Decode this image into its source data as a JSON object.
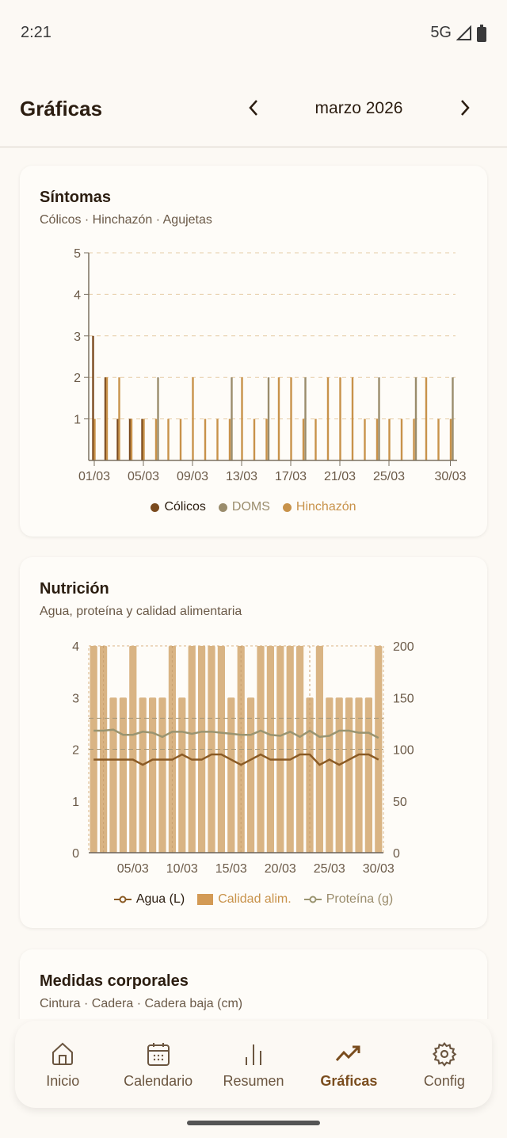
{
  "status": {
    "time": "2:21",
    "network": "5G"
  },
  "header": {
    "title": "Gráficas",
    "month": "marzo 2026",
    "prev_icon": "chevron-left-icon",
    "next_icon": "chevron-right-icon"
  },
  "colors": {
    "colicos": "#7a4a1e",
    "doms": "#9a8c6c",
    "hinchazon": "#c8924a",
    "agua": "#8a5a24",
    "calidad": "#d9b484",
    "proteina": "#9a9470",
    "accent": "#7a4d1e"
  },
  "symptoms": {
    "title": "Síntomas",
    "subtitle": "Cólicos · Hinchazón · Agujetas",
    "chart_data": {
      "type": "bar",
      "ylim": [
        0,
        5
      ],
      "yticks": [
        "1",
        "2",
        "3",
        "4",
        "5"
      ],
      "xticks": [
        {
          "day": 1,
          "label": "01/03"
        },
        {
          "day": 5,
          "label": "05/03"
        },
        {
          "day": 9,
          "label": "09/03"
        },
        {
          "day": 13,
          "label": "13/03"
        },
        {
          "day": 17,
          "label": "17/03"
        },
        {
          "day": 21,
          "label": "21/03"
        },
        {
          "day": 25,
          "label": "25/03"
        },
        {
          "day": 30,
          "label": "30/03"
        }
      ],
      "days": [
        1,
        2,
        3,
        4,
        5,
        6,
        7,
        8,
        9,
        10,
        11,
        12,
        13,
        14,
        15,
        16,
        17,
        18,
        19,
        20,
        21,
        22,
        23,
        24,
        25,
        26,
        27,
        28,
        29,
        30
      ],
      "series": [
        {
          "name": "Cólicos",
          "values": [
            3,
            2,
            1,
            1,
            1,
            0,
            0,
            0,
            0,
            0,
            0,
            0,
            0,
            0,
            0,
            0,
            0,
            0,
            0,
            0,
            0,
            0,
            0,
            0,
            0,
            0,
            0,
            0,
            0,
            0
          ]
        },
        {
          "name": "DOMS",
          "values": [
            0,
            0,
            0,
            0,
            0,
            2,
            0,
            0,
            0,
            0,
            0,
            2,
            0,
            0,
            2,
            0,
            0,
            2,
            0,
            0,
            0,
            0,
            0,
            2,
            0,
            0,
            2,
            0,
            0,
            2
          ]
        },
        {
          "name": "Hinchazón",
          "values": [
            1,
            2,
            2,
            1,
            1,
            1,
            1,
            1,
            2,
            1,
            1,
            1,
            2,
            1,
            1,
            2,
            2,
            1,
            1,
            2,
            2,
            2,
            1,
            1,
            1,
            1,
            1,
            2,
            1,
            1
          ]
        }
      ]
    }
  },
  "nutrition": {
    "title": "Nutrición",
    "subtitle": "Agua, proteína y calidad alimentaria",
    "chart_data": {
      "type": "bar+line",
      "ylim_left": [
        0,
        4
      ],
      "ylim_right": [
        0,
        200
      ],
      "yticks_left": [
        "0",
        "1",
        "2",
        "3",
        "4"
      ],
      "yticks_right": [
        "0",
        "50",
        "100",
        "150",
        "200"
      ],
      "xticks": [
        {
          "day": 5,
          "label": "05/03"
        },
        {
          "day": 10,
          "label": "10/03"
        },
        {
          "day": 15,
          "label": "15/03"
        },
        {
          "day": 20,
          "label": "20/03"
        },
        {
          "day": 25,
          "label": "25/03"
        },
        {
          "day": 30,
          "label": "30/03"
        }
      ],
      "reference_lines_right": [
        100,
        130
      ],
      "week_markers": [
        2,
        9,
        16,
        23
      ],
      "series": [
        {
          "name": "Calidad alim.",
          "type": "bar",
          "axis": "left",
          "values": [
            4,
            4,
            3,
            3,
            4,
            3,
            3,
            3,
            4,
            3,
            4,
            4,
            4,
            4,
            3,
            4,
            3,
            4,
            4,
            4,
            4,
            4,
            3,
            4,
            3,
            3,
            3,
            3,
            3,
            4
          ]
        },
        {
          "name": "Agua (L)",
          "type": "line",
          "axis": "left",
          "values": [
            1.8,
            1.8,
            1.8,
            1.8,
            1.8,
            1.7,
            1.8,
            1.8,
            1.8,
            1.9,
            1.8,
            1.8,
            1.9,
            1.9,
            1.8,
            1.7,
            1.8,
            1.9,
            1.8,
            1.8,
            1.8,
            1.9,
            1.9,
            1.7,
            1.8,
            1.7,
            1.8,
            1.9,
            1.9,
            1.8
          ]
        },
        {
          "name": "Proteína (g)",
          "type": "line",
          "axis": "right",
          "values": [
            118,
            118,
            119,
            114,
            114,
            117,
            116,
            112,
            117,
            117,
            115,
            117,
            117,
            116,
            115,
            114,
            114,
            118,
            114,
            113,
            117,
            112,
            118,
            112,
            113,
            118,
            118,
            116,
            116,
            111
          ]
        }
      ]
    }
  },
  "body": {
    "title": "Medidas corporales",
    "subtitle": "Cintura · Cadera · Cadera baja (cm)"
  },
  "nav": [
    {
      "label": "Inicio",
      "icon": "home-icon"
    },
    {
      "label": "Calendario",
      "icon": "calendar-icon"
    },
    {
      "label": "Resumen",
      "icon": "bar-chart-icon"
    },
    {
      "label": "Gráficas",
      "icon": "trending-up-icon",
      "active": true
    },
    {
      "label": "Config",
      "icon": "gear-icon"
    }
  ]
}
